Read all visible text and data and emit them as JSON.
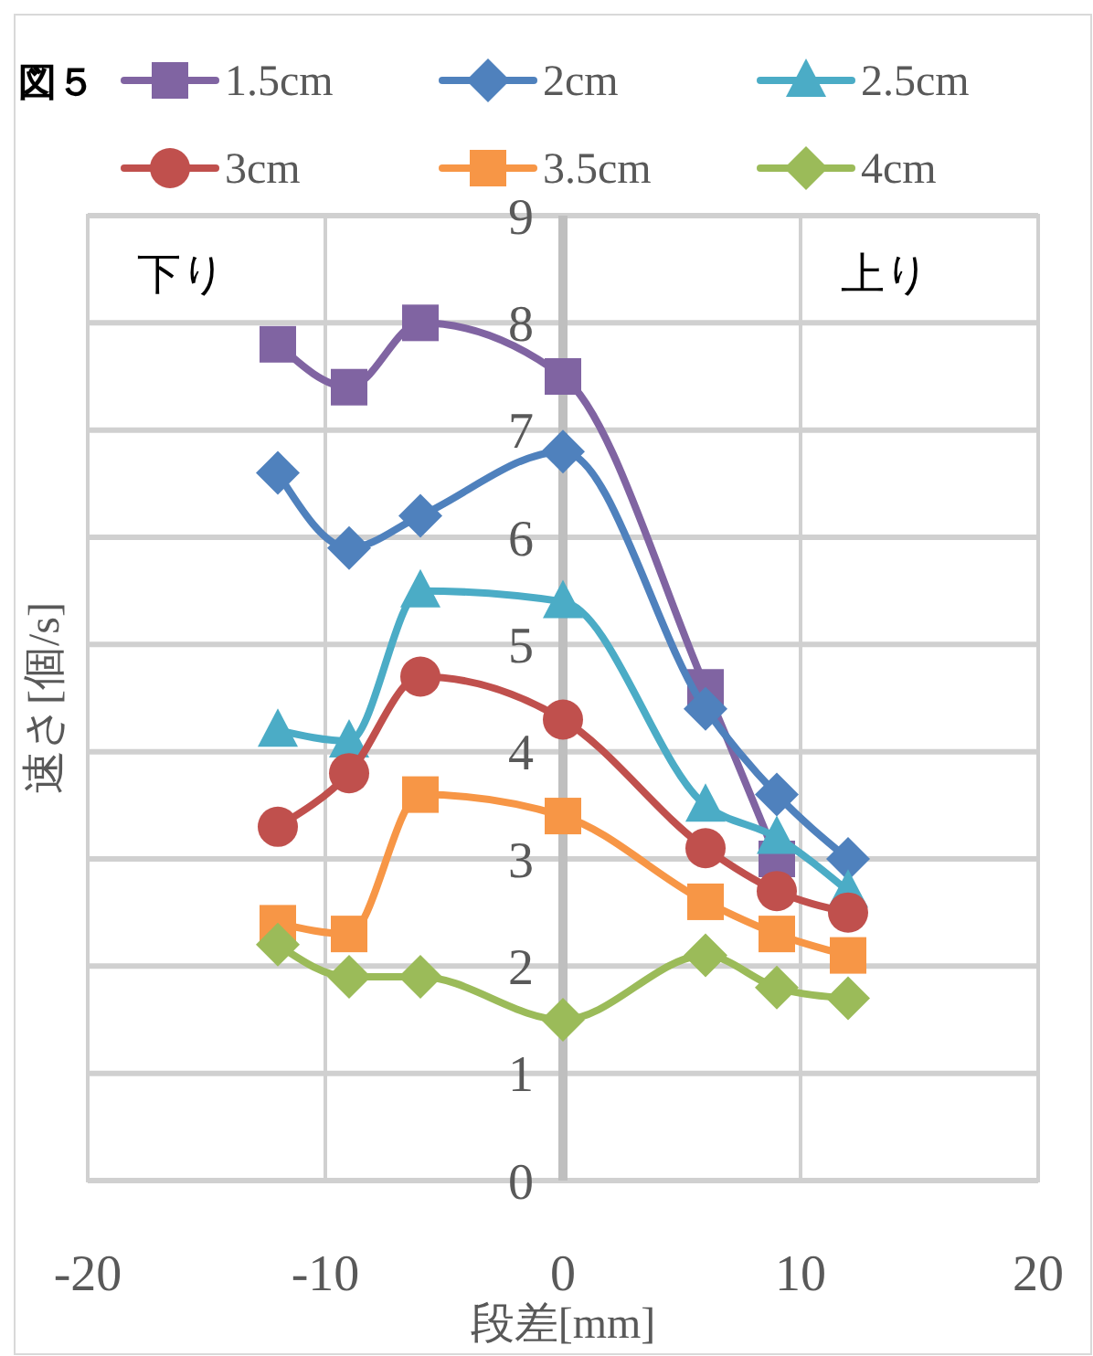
{
  "chart_data": {
    "type": "line",
    "title": "図５",
    "xlabel": "段差[mm]",
    "ylabel": "速さ[個/s]",
    "annotations": [
      "下り",
      "上り"
    ],
    "x": [
      -12,
      -9,
      -6,
      0,
      6,
      9,
      12
    ],
    "xlim": [
      -20,
      20
    ],
    "xticks": [
      -20,
      -10,
      0,
      10,
      20
    ],
    "ylim": [
      0,
      9
    ],
    "yticks": [
      0,
      1,
      2,
      3,
      4,
      5,
      6,
      7,
      8,
      9
    ],
    "grid": true,
    "legend": "top",
    "line_style": "solid",
    "series": [
      {
        "name": "1.5cm",
        "color": "#8064a2",
        "marker": "square",
        "values": [
          7.8,
          7.4,
          8.0,
          7.5,
          4.6,
          3.0,
          null
        ]
      },
      {
        "name": "2cm",
        "color": "#4f81bd",
        "marker": "diamond",
        "values": [
          6.6,
          5.9,
          6.2,
          6.8,
          4.4,
          3.6,
          3.0
        ]
      },
      {
        "name": "2.5cm",
        "color": "#4bacc6",
        "marker": "triangle",
        "values": [
          4.2,
          4.1,
          5.5,
          5.4,
          3.5,
          3.2,
          2.7
        ]
      },
      {
        "name": "3cm",
        "color": "#c0504d",
        "marker": "circle",
        "values": [
          3.3,
          3.8,
          4.7,
          4.3,
          3.1,
          2.7,
          2.5
        ]
      },
      {
        "name": "3.5cm",
        "color": "#f79646",
        "marker": "square",
        "values": [
          2.4,
          2.3,
          3.6,
          3.4,
          2.6,
          2.3,
          2.1
        ]
      },
      {
        "name": "4cm",
        "color": "#9bbb59",
        "marker": "diamond",
        "values": [
          2.2,
          1.9,
          1.9,
          1.5,
          2.1,
          1.8,
          1.7
        ]
      }
    ]
  }
}
